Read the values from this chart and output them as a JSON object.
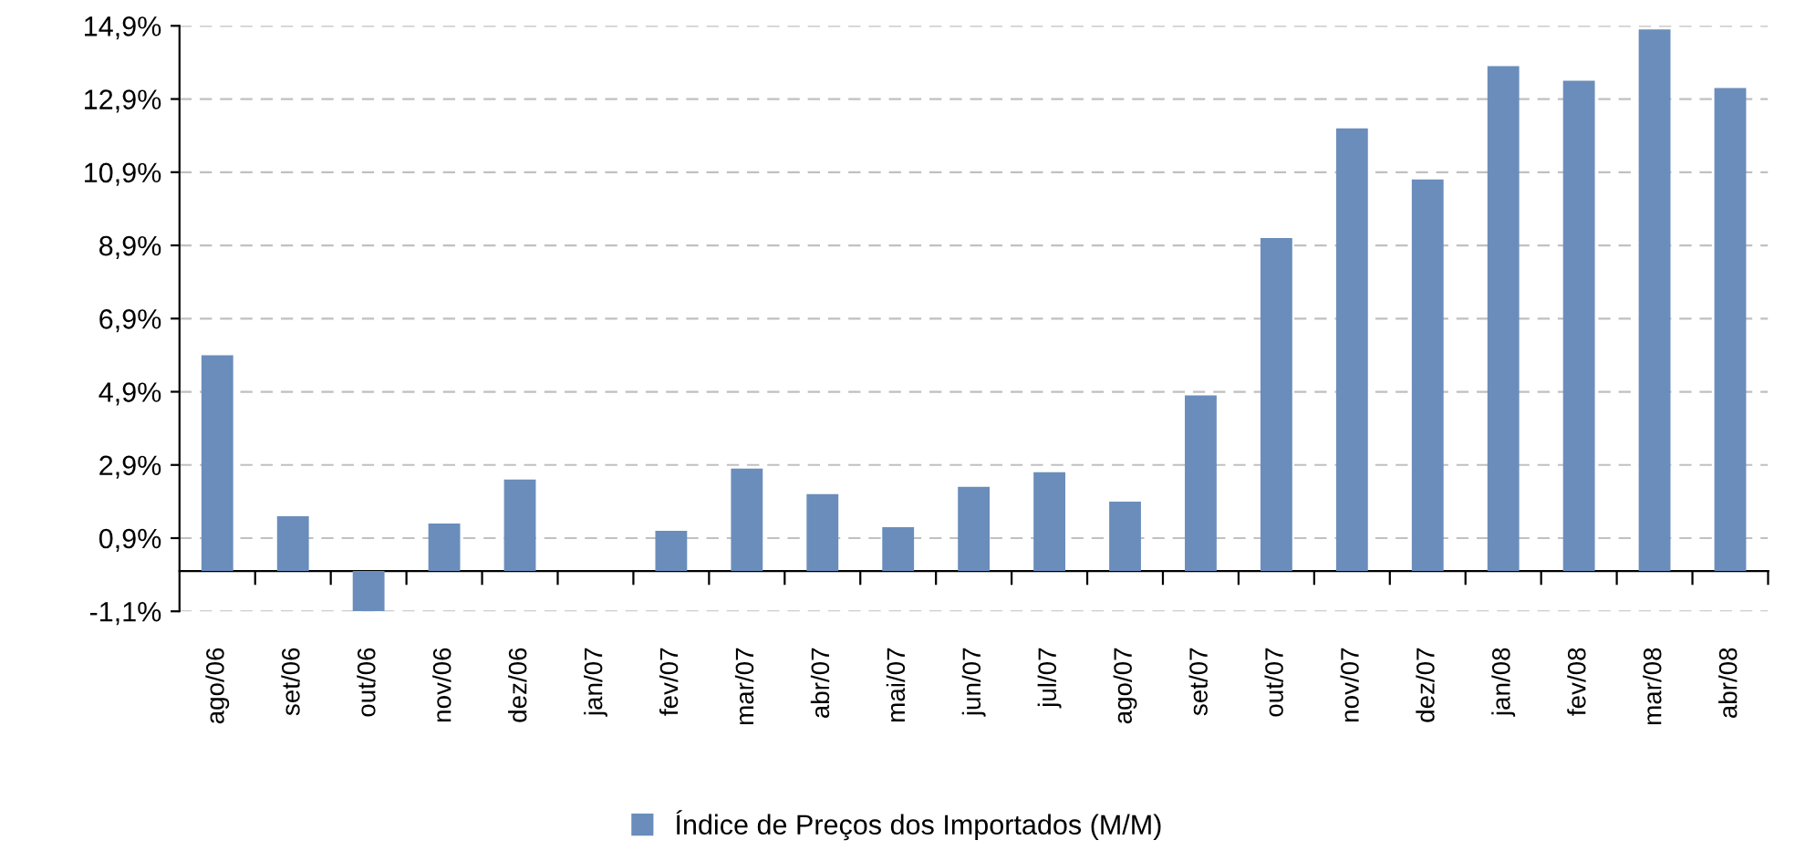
{
  "chart_data": {
    "type": "bar",
    "categories": [
      "ago/06",
      "set/06",
      "out/06",
      "nov/06",
      "dez/06",
      "jan/07",
      "fev/07",
      "mar/07",
      "abr/07",
      "mai/07",
      "jun/07",
      "jul/07",
      "ago/07",
      "set/07",
      "out/07",
      "nov/07",
      "dez/07",
      "jan/08",
      "fev/08",
      "mar/08",
      "abr/08"
    ],
    "series": [
      {
        "name": "Índice de Preços dos Importados (M/M)",
        "color": "#6a8dbb",
        "values": [
          5.9,
          1.5,
          -1.1,
          1.3,
          2.5,
          0,
          1.1,
          2.8,
          2.1,
          1.2,
          2.3,
          2.7,
          1.9,
          4.8,
          9.1,
          12.1,
          10.7,
          13.8,
          13.4,
          14.8,
          13.2
        ]
      }
    ],
    "ylim": [
      -1.1,
      14.9
    ],
    "yticks": [
      {
        "value": -1.1,
        "label": "-1,1%"
      },
      {
        "value": 0.9,
        "label": "0,9%"
      },
      {
        "value": 2.9,
        "label": "2,9%"
      },
      {
        "value": 4.9,
        "label": "4,9%"
      },
      {
        "value": 6.9,
        "label": "6,9%"
      },
      {
        "value": 8.9,
        "label": "8,9%"
      },
      {
        "value": 10.9,
        "label": "10,9%"
      },
      {
        "value": 12.9,
        "label": "12,9%"
      },
      {
        "value": 14.9,
        "label": "14,9%"
      }
    ],
    "grid": "y",
    "legend": "bottom"
  }
}
